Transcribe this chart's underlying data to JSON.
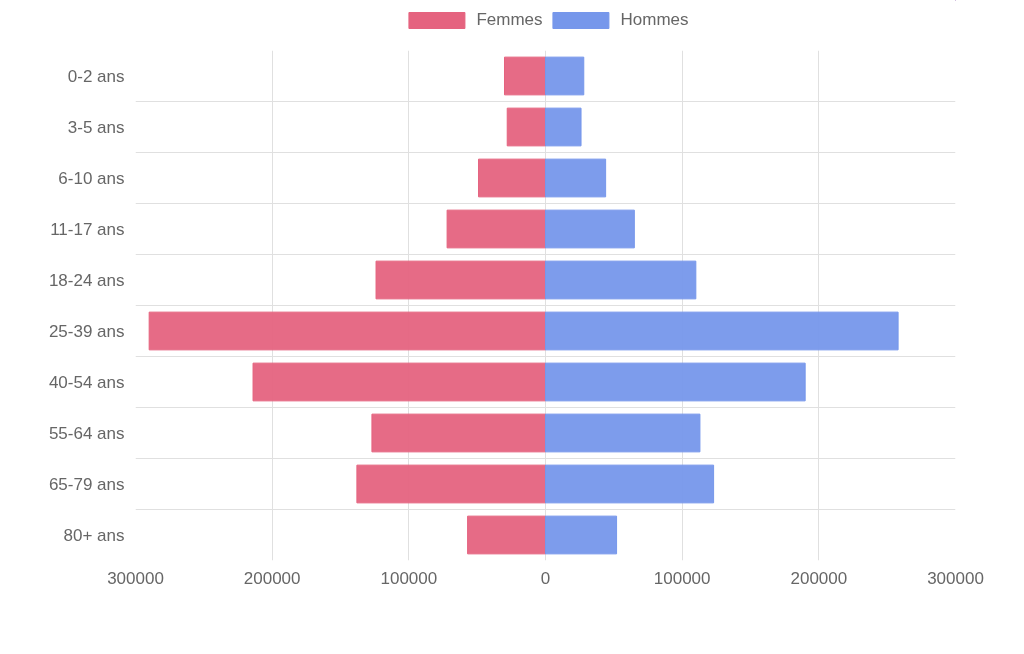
{
  "chart_data": {
    "type": "bar",
    "orientation": "horizontal",
    "categories": [
      "0-2 ans",
      "3-5 ans",
      "6-10 ans",
      "11-17 ans",
      "18-24 ans",
      "25-39 ans",
      "40-54 ans",
      "55-64 ans",
      "65-79 ans",
      "80+ ans"
    ],
    "series": [
      {
        "name": "Femmes",
        "color": "#e5637f",
        "values": [
          -30000,
          -28000,
          -49000,
          -72000,
          -124000,
          -290000,
          -214000,
          -127000,
          -138000,
          -57000
        ]
      },
      {
        "name": "Hommes",
        "color": "#7697eb",
        "values": [
          28000,
          26000,
          44000,
          65000,
          110000,
          258000,
          190000,
          113000,
          123000,
          52000
        ]
      }
    ],
    "xlim": [
      -300000,
      300000
    ],
    "xticks": [
      {
        "value": -300000,
        "label": "300000"
      },
      {
        "value": -200000,
        "label": "200000"
      },
      {
        "value": -100000,
        "label": "100000"
      },
      0,
      100000,
      200000,
      300000
    ],
    "grid": true,
    "legend": "top"
  }
}
